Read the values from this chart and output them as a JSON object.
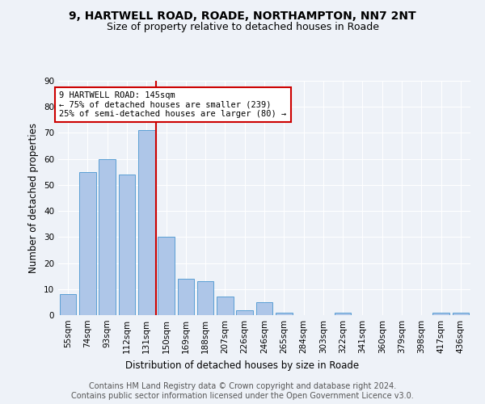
{
  "title1": "9, HARTWELL ROAD, ROADE, NORTHAMPTON, NN7 2NT",
  "title2": "Size of property relative to detached houses in Roade",
  "xlabel": "Distribution of detached houses by size in Roade",
  "ylabel": "Number of detached properties",
  "categories": [
    "55sqm",
    "74sqm",
    "93sqm",
    "112sqm",
    "131sqm",
    "150sqm",
    "169sqm",
    "188sqm",
    "207sqm",
    "226sqm",
    "246sqm",
    "265sqm",
    "284sqm",
    "303sqm",
    "322sqm",
    "341sqm",
    "360sqm",
    "379sqm",
    "398sqm",
    "417sqm",
    "436sqm"
  ],
  "values": [
    8,
    55,
    60,
    54,
    71,
    30,
    14,
    13,
    7,
    2,
    5,
    1,
    0,
    0,
    1,
    0,
    0,
    0,
    0,
    1,
    1
  ],
  "bar_color": "#aec6e8",
  "bar_edge_color": "#5a9fd4",
  "vline_x_idx": 4.5,
  "vline_color": "#cc0000",
  "annotation_text": "9 HARTWELL ROAD: 145sqm\n← 75% of detached houses are smaller (239)\n25% of semi-detached houses are larger (80) →",
  "annotation_box_color": "#ffffff",
  "annotation_box_edge_color": "#cc0000",
  "ylim": [
    0,
    90
  ],
  "yticks": [
    0,
    10,
    20,
    30,
    40,
    50,
    60,
    70,
    80,
    90
  ],
  "footer": "Contains HM Land Registry data © Crown copyright and database right 2024.\nContains public sector information licensed under the Open Government Licence v3.0.",
  "bg_color": "#eef2f8",
  "plot_bg_color": "#eef2f8",
  "grid_color": "#ffffff",
  "title1_fontsize": 10,
  "title2_fontsize": 9,
  "xlabel_fontsize": 8.5,
  "ylabel_fontsize": 8.5,
  "tick_fontsize": 7.5,
  "footer_fontsize": 7,
  "annotation_fontsize": 7.5
}
